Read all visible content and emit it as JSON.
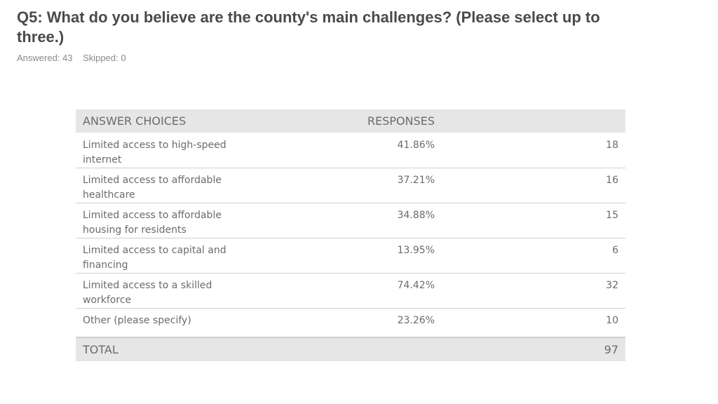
{
  "question": {
    "title": "Q5: What do you believe are the county's main challenges? (Please select up to three.)",
    "answered": "Answered: 43",
    "skipped": "Skipped: 0"
  },
  "table": {
    "headers": {
      "answer_choices": "ANSWER CHOICES",
      "responses": "RESPONSES"
    },
    "rows": [
      {
        "choice": "Limited access to high-speed internet",
        "percent": "41.86%",
        "count": "18"
      },
      {
        "choice": "Limited access to affordable healthcare",
        "percent": "37.21%",
        "count": "16"
      },
      {
        "choice": "Limited access to affordable housing for residents",
        "percent": "34.88%",
        "count": "15"
      },
      {
        "choice": "Limited access to capital and financing",
        "percent": "13.95%",
        "count": "6"
      },
      {
        "choice": "Limited access to a skilled workforce",
        "percent": "74.42%",
        "count": "32"
      },
      {
        "choice": "Other (please specify)",
        "percent": "23.26%",
        "count": "10"
      }
    ],
    "total": {
      "label": "TOTAL",
      "value": "97"
    }
  }
}
